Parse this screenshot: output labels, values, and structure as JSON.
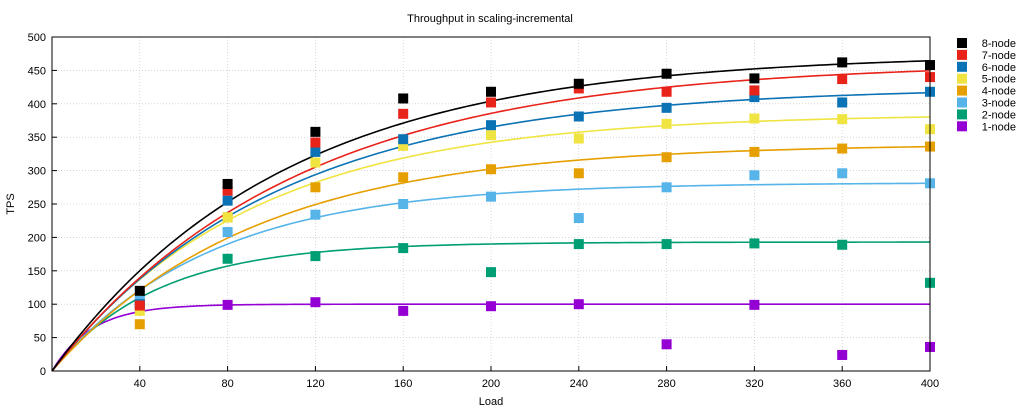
{
  "chart_data": {
    "type": "scatter",
    "title": "Throughput in scaling-incremental",
    "xlabel": "Load",
    "ylabel": "TPS",
    "xlim": [
      0,
      400
    ],
    "ylim": [
      0,
      500
    ],
    "xticks": [
      40,
      80,
      120,
      160,
      200,
      240,
      280,
      320,
      360,
      400
    ],
    "yticks": [
      0,
      50,
      100,
      150,
      200,
      250,
      300,
      350,
      400,
      450,
      500
    ],
    "grid": true,
    "legend_position": "right",
    "x": [
      40,
      80,
      120,
      160,
      200,
      240,
      280,
      320,
      360,
      400
    ],
    "series": [
      {
        "name": "8-node",
        "color": "#000000",
        "values": [
          120,
          280,
          358,
          408,
          418,
          430,
          445,
          438,
          462,
          458
        ],
        "fit": {
          "a": 475,
          "k": 0.0095
        }
      },
      {
        "name": "7-node",
        "color": "#e8231a",
        "values": [
          98,
          270,
          342,
          385,
          402,
          423,
          418,
          420,
          437,
          440
        ],
        "fit": {
          "a": 462,
          "k": 0.009
        }
      },
      {
        "name": "6-node",
        "color": "#0b72b5",
        "values": [
          100,
          255,
          328,
          347,
          368,
          381,
          394,
          410,
          402,
          418
        ],
        "fit": {
          "a": 425,
          "k": 0.0098
        }
      },
      {
        "name": "5-node",
        "color": "#f0e442",
        "values": [
          90,
          230,
          312,
          337,
          353,
          348,
          370,
          378,
          377,
          362
        ],
        "fit": {
          "a": 385,
          "k": 0.011
        }
      },
      {
        "name": "4-node",
        "color": "#e69f00",
        "values": [
          70,
          230,
          275,
          290,
          302,
          296,
          320,
          328,
          333,
          336
        ],
        "fit": {
          "a": 340,
          "k": 0.011
        }
      },
      {
        "name": "3-node",
        "color": "#56b4e9",
        "values": [
          105,
          208,
          234,
          250,
          261,
          229,
          275,
          293,
          296,
          281
        ],
        "fit": {
          "a": 282,
          "k": 0.014
        }
      },
      {
        "name": "2-node",
        "color": "#009e73",
        "values": [
          100,
          168,
          172,
          184,
          148,
          190,
          190,
          191,
          189,
          132
        ],
        "fit": {
          "a": 193,
          "k": 0.021
        }
      },
      {
        "name": "1-node",
        "color": "#9400d3",
        "values": [
          100,
          99,
          103,
          90,
          97,
          100,
          40,
          99,
          24,
          36
        ],
        "fit": {
          "a": 100,
          "k": 0.055
        }
      }
    ]
  }
}
